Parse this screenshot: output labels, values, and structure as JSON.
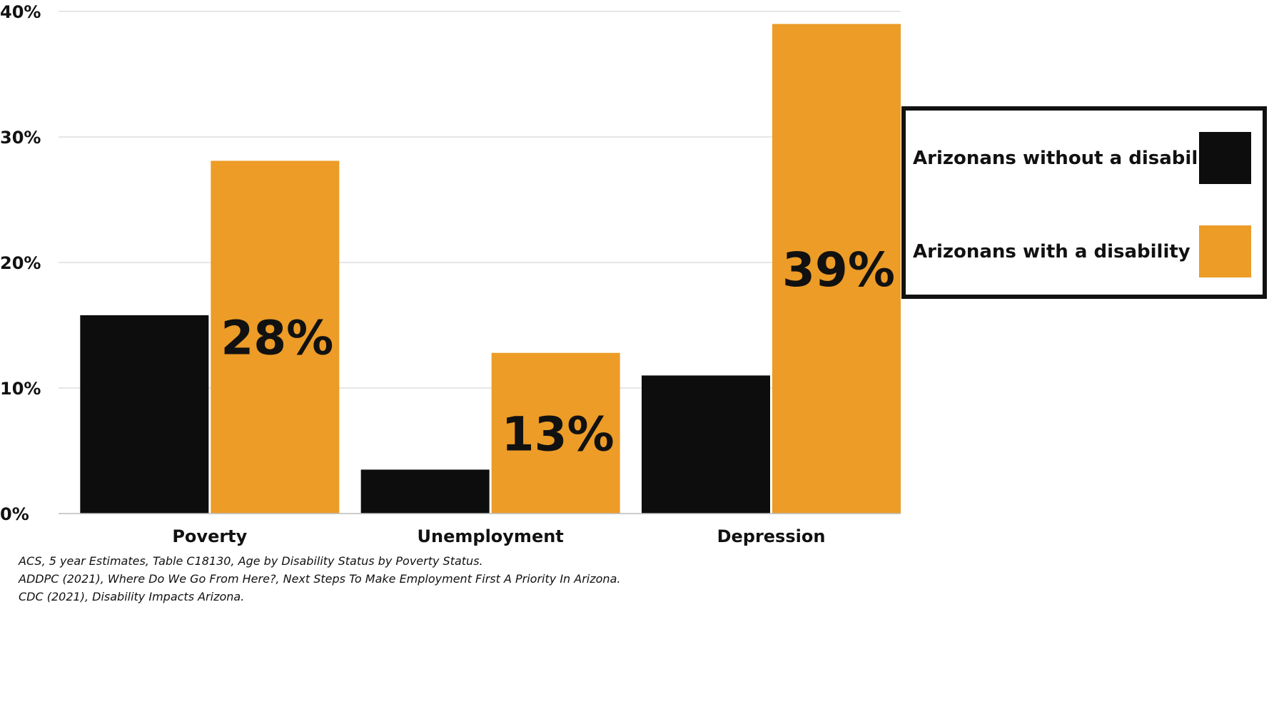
{
  "chart_data": {
    "type": "bar",
    "categories": [
      "Poverty",
      "Unemployment",
      "Depression"
    ],
    "series": [
      {
        "name": "Arizonans without a disability",
        "color": "#0d0d0d",
        "values": [
          15.8,
          3.5,
          11.0
        ],
        "data_labels": [
          "",
          "",
          ""
        ]
      },
      {
        "name": "Arizonans with a disability",
        "color": "#ec9c27",
        "values": [
          28.1,
          12.8,
          39.0
        ],
        "data_labels": [
          "28%",
          "13%",
          "39%"
        ]
      }
    ],
    "yticks": [
      "0%",
      "10%",
      "20%",
      "30%",
      "40%"
    ],
    "ylim": [
      0,
      40
    ],
    "grid": true,
    "legend_position": "right"
  },
  "sources": [
    "ACS, 5 year Estimates, Table C18130, Age by Disability Status by Poverty Status.",
    "ADDPC (2021), Where Do We Go From Here?, Next Steps To Make Employment First A Priority In Arizona.",
    "CDC (2021), Disability Impacts Arizona."
  ]
}
